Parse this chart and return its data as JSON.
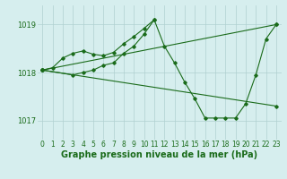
{
  "background_color": "#d6eeee",
  "grid_color": "#b0d0d0",
  "line_color": "#1a6b1a",
  "title": "Graphe pression niveau de la mer (hPa)",
  "xlim": [
    -0.5,
    23.5
  ],
  "ylim": [
    1016.6,
    1019.4
  ],
  "yticks": [
    1017,
    1018,
    1019
  ],
  "xticks": [
    0,
    1,
    2,
    3,
    4,
    5,
    6,
    7,
    8,
    9,
    10,
    11,
    12,
    13,
    14,
    15,
    16,
    17,
    18,
    19,
    20,
    21,
    22,
    23
  ],
  "series": [
    {
      "x": [
        0,
        1,
        2,
        3,
        4,
        5,
        6,
        7,
        8,
        9,
        10,
        11
      ],
      "y": [
        1018.05,
        1018.1,
        1018.3,
        1018.4,
        1018.45,
        1018.38,
        1018.35,
        1018.42,
        1018.6,
        1018.75,
        1018.92,
        1019.1
      ]
    },
    {
      "x": [
        0,
        3,
        4,
        5,
        6,
        7,
        8,
        9,
        10,
        11,
        12,
        13,
        14,
        15,
        16,
        17,
        18,
        19,
        20,
        21,
        22,
        23
      ],
      "y": [
        1018.05,
        1017.95,
        1018.0,
        1018.05,
        1018.15,
        1018.2,
        1018.4,
        1018.55,
        1018.8,
        1019.1,
        1018.55,
        1018.2,
        1017.8,
        1017.45,
        1017.05,
        1017.05,
        1017.05,
        1017.05,
        1017.35,
        1017.95,
        1018.7,
        1019.0
      ]
    },
    {
      "x": [
        0,
        23
      ],
      "y": [
        1018.05,
        1017.3
      ]
    },
    {
      "x": [
        0,
        23
      ],
      "y": [
        1018.05,
        1019.0
      ]
    }
  ],
  "tick_fontsize": 5.5,
  "title_fontsize": 7.0,
  "title_color": "#1a6b1a",
  "tick_color": "#1a6b1a",
  "label_bottom_color": "#1a6b1a"
}
